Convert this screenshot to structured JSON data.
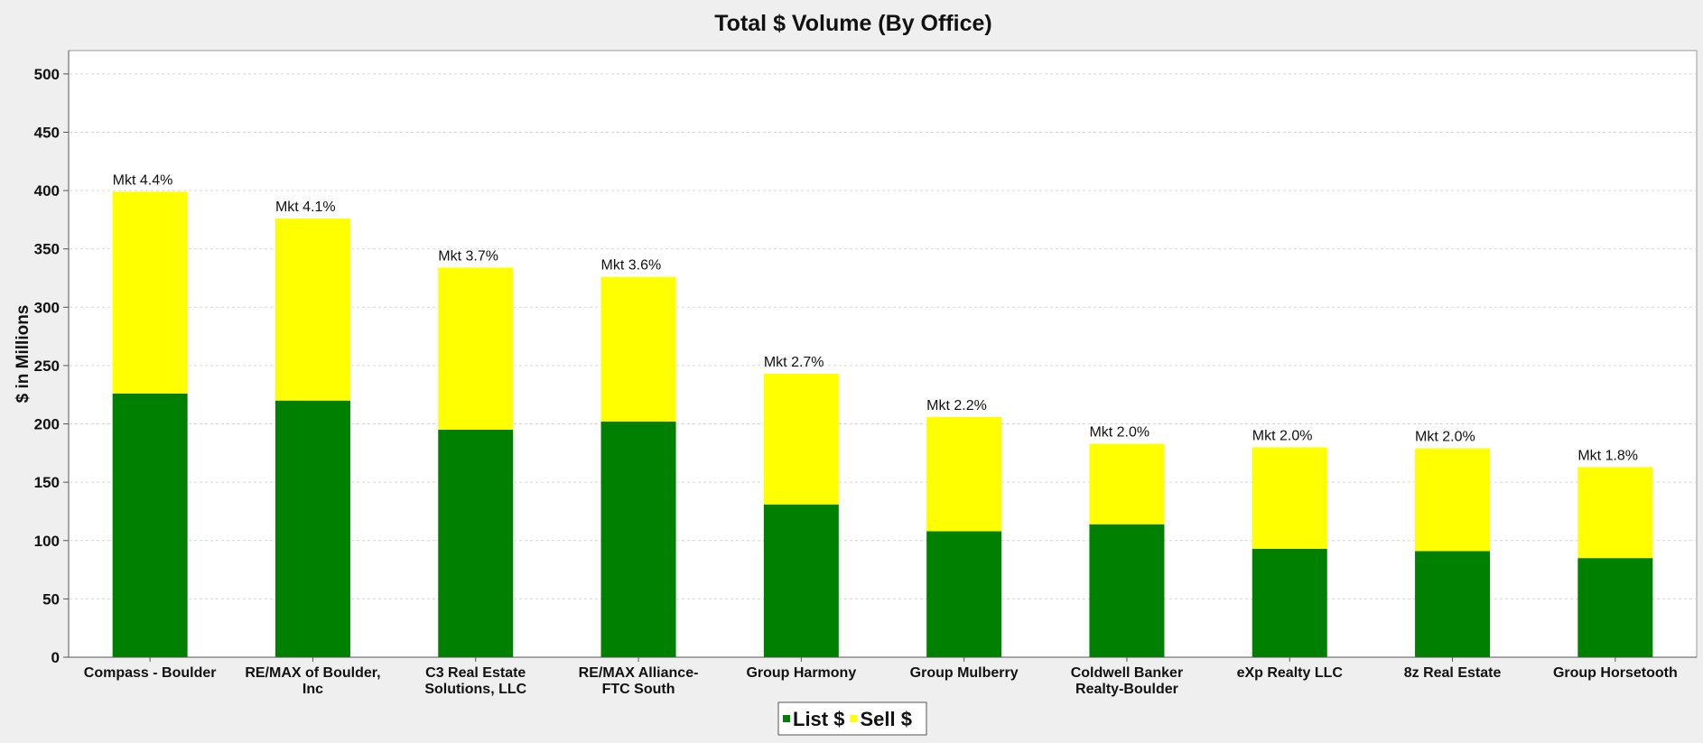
{
  "chart_data": {
    "type": "bar",
    "stacked": true,
    "title": "Total $ Volume (By Office)",
    "xlabel": "",
    "ylabel": "$ in Millions",
    "ylim": [
      0,
      520
    ],
    "yticks": [
      0,
      50,
      100,
      150,
      200,
      250,
      300,
      350,
      400,
      450,
      500
    ],
    "grid": true,
    "legend_position": "bottom-center",
    "categories": [
      [
        "Compass - Boulder"
      ],
      [
        "RE/MAX of Boulder,",
        "Inc"
      ],
      [
        "C3 Real Estate",
        "Solutions, LLC"
      ],
      [
        "RE/MAX Alliance-",
        "FTC South"
      ],
      [
        "Group Harmony"
      ],
      [
        "Group Mulberry"
      ],
      [
        "Coldwell Banker",
        "Realty-Boulder"
      ],
      [
        "eXp Realty LLC"
      ],
      [
        "8z Real Estate"
      ],
      [
        "Group Horsetooth"
      ]
    ],
    "series": [
      {
        "name": "List $",
        "color": "#008000",
        "values": [
          226,
          220,
          195,
          202,
          131,
          108,
          114,
          93,
          91,
          85
        ]
      },
      {
        "name": "Sell $",
        "color": "#ffff00",
        "values": [
          173,
          156,
          139,
          124,
          112,
          98,
          69,
          87,
          88,
          78
        ]
      }
    ],
    "annotations": [
      "Mkt 4.4%",
      "Mkt 4.1%",
      "Mkt 3.7%",
      "Mkt 3.6%",
      "Mkt 2.7%",
      "Mkt 2.2%",
      "Mkt 2.0%",
      "Mkt 2.0%",
      "Mkt 2.0%",
      "Mkt 1.8%"
    ]
  }
}
